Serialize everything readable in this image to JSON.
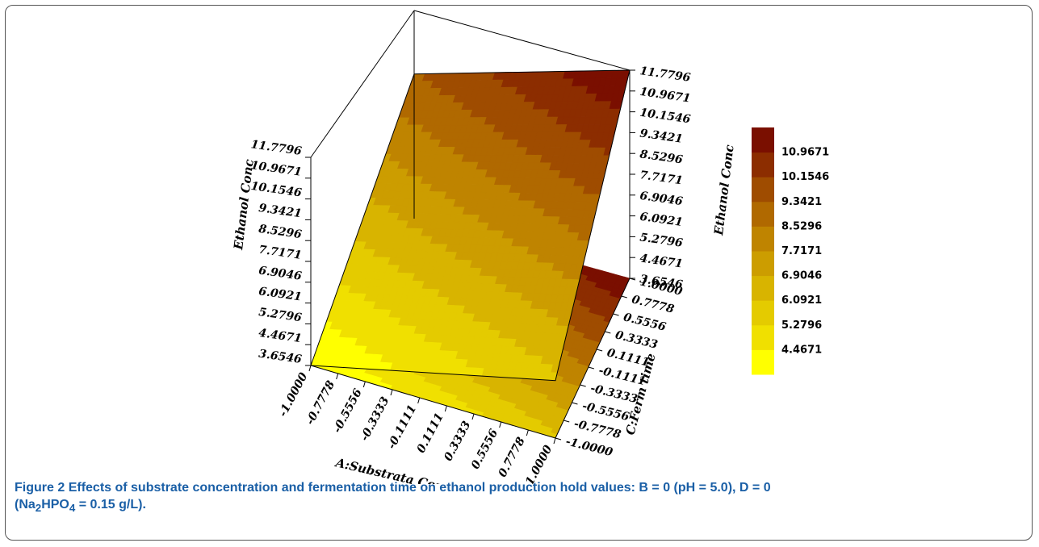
{
  "chart_data": {
    "type": "surface3d",
    "title": "",
    "xlabel": "A:Substrata Conc",
    "ylabel": "C:Ferm time",
    "zlabel": "Ethanol Conc",
    "x_ticks": [
      "-1.0000",
      "-0.7778",
      "-0.5556",
      "-0.3333",
      "-0.1111",
      "0.1111",
      "0.3333",
      "0.5556",
      "0.7778",
      "1.0000"
    ],
    "y_ticks": [
      "-1.0000",
      "-0.7778",
      "-0.5556",
      "-0.3333",
      "-0.1111",
      "0.1111",
      "0.3333",
      "0.5556",
      "0.7778",
      "1.0000"
    ],
    "z_ticks": [
      "3.6546",
      "4.4671",
      "5.2796",
      "6.0921",
      "6.9046",
      "7.7171",
      "8.5296",
      "9.3421",
      "10.1546",
      "10.9671",
      "11.7796"
    ],
    "x_range": [
      -1,
      1
    ],
    "y_range": [
      -1,
      1
    ],
    "z_range": [
      3.6546,
      11.7796
    ],
    "surface_corners": [
      {
        "x": -1,
        "y": -1,
        "z": 3.6546
      },
      {
        "x": 1,
        "y": -1,
        "z": 5.9
      },
      {
        "x": -1,
        "y": 1,
        "z": 9.3
      },
      {
        "x": 1,
        "y": 1,
        "z": 11.7796
      }
    ],
    "colorbar": {
      "levels": [
        "4.4671",
        "5.2796",
        "6.0921",
        "6.9046",
        "7.7171",
        "8.5296",
        "9.3421",
        "10.1546",
        "10.9671"
      ],
      "colors": [
        "#ffff00",
        "#f0e000",
        "#e4cb00",
        "#d8b400",
        "#cc9d00",
        "#bf8400",
        "#b06900",
        "#9f4c00",
        "#8c2d00",
        "#7a0f00"
      ]
    },
    "grid": false,
    "legend": "colorbar-right"
  },
  "caption": {
    "lead": "Figure 2",
    "text": "Effects of substrate concentration and fermentation time on ethanol production hold values: B = 0 (pH = 5.0), D = 0",
    "line2_prefix": "(Na",
    "sub1": "2",
    "line2_mid": "HPO",
    "sub2": "4",
    "line2_suffix": " = 0.15 g/L)."
  }
}
